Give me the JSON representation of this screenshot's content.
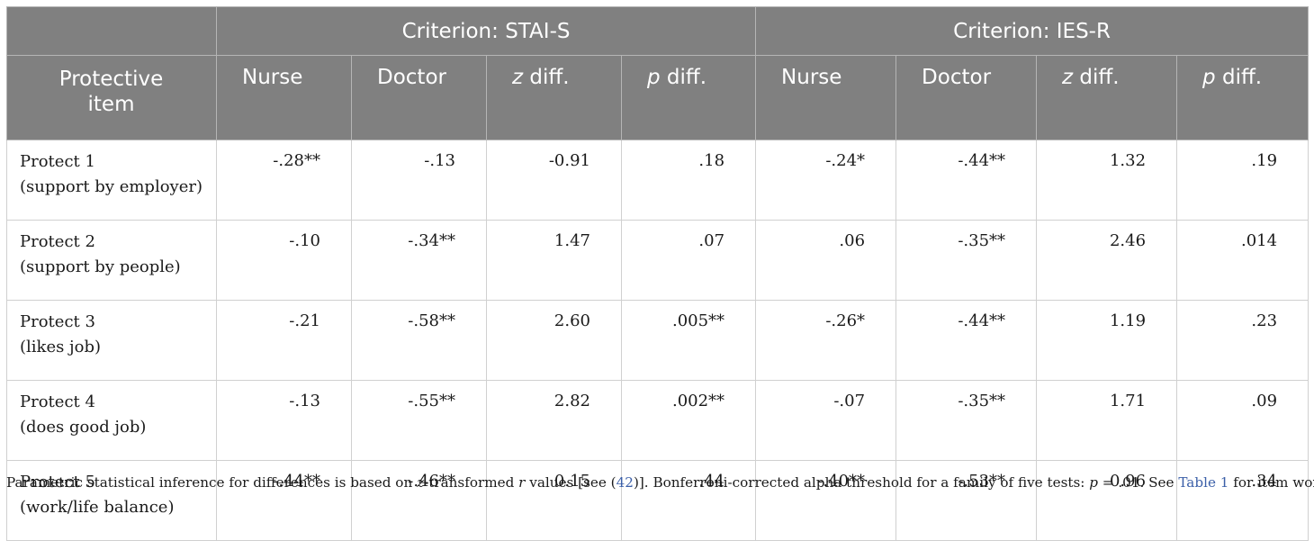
{
  "table": {
    "group_headers": [
      "",
      "Criterion: STAI-S",
      "Criterion: IES-R"
    ],
    "first_col_header": [
      "Protective",
      "item"
    ],
    "sub_headers": [
      {
        "italic": "",
        "rest": "Nurse"
      },
      {
        "italic": "",
        "rest": "Doctor"
      },
      {
        "italic": "z",
        "rest": " diff."
      },
      {
        "italic": "p",
        "rest": " diff."
      },
      {
        "italic": "",
        "rest": "Nurse"
      },
      {
        "italic": "",
        "rest": "Doctor"
      },
      {
        "italic": "z",
        "rest": " diff."
      },
      {
        "italic": "p",
        "rest": " diff."
      }
    ],
    "rows": [
      {
        "item": "Protect 1",
        "desc": "(support by employer)",
        "cells": [
          "-.28**",
          "-.13",
          "-0.91",
          ".18",
          "-.24*",
          "-.44**",
          "1.32",
          ".19"
        ]
      },
      {
        "item": "Protect 2",
        "desc": "(support by people)",
        "cells": [
          "-.10",
          "-.34**",
          "1.47",
          ".07",
          ".06",
          "-.35**",
          "2.46",
          ".014"
        ]
      },
      {
        "item": "Protect 3",
        "desc": "(likes job)",
        "cells": [
          "-.21",
          "-.58**",
          "2.60",
          ".005**",
          "-.26*",
          "-.44**",
          "1.19",
          ".23"
        ]
      },
      {
        "item": "Protect 4",
        "desc": "(does good job)",
        "cells": [
          "-.13",
          "-.55**",
          "2.82",
          ".002**",
          "-.07",
          "-.35**",
          "1.71",
          ".09"
        ]
      },
      {
        "item": "Protect 5",
        "desc": "(work/life balance)",
        "cells": [
          "-.44**",
          "-.46**",
          "0.15",
          ".44",
          "-.40**",
          "-.53**",
          "0.96",
          ".34"
        ]
      }
    ]
  },
  "footnote": {
    "t1": "Parametric statistical inference for differences is based on ",
    "i1": "z",
    "t2": "-transformed ",
    "i2": "r",
    "t3": " values [see (",
    "ref": "42",
    "t4": ")]. Bonferroni-corrected alpha threshold for a family of five tests: ",
    "i3": "p",
    "t5": " = .01. See ",
    "table_link": "Table 1",
    "t6": " for item wordings."
  },
  "colors": {
    "header_bg": "#808080",
    "header_text": "#ffffff",
    "link": "#3b5fa8"
  }
}
